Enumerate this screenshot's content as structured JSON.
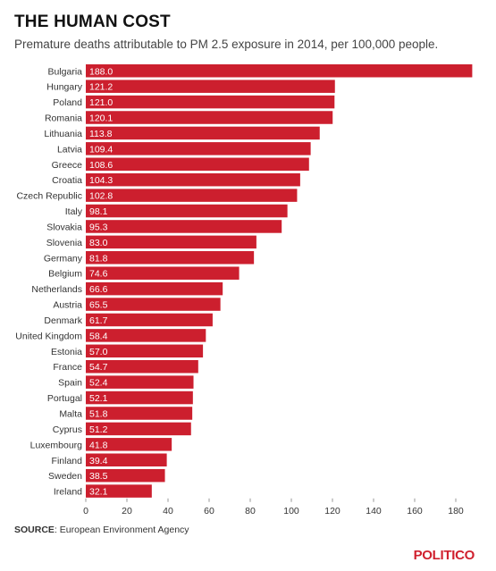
{
  "header": {
    "title": "THE HUMAN COST",
    "subtitle": "Premature deaths attributable to PM 2.5 exposure in 2014, per 100,000 people."
  },
  "footer": {
    "source_label": "SOURCE",
    "source_text": ": European Environment Agency",
    "brand": "POLITICO"
  },
  "colors": {
    "bar": "#cc1f2e",
    "label": "#ffffff",
    "text": "#333333"
  },
  "chart_data": {
    "type": "bar",
    "orientation": "horizontal",
    "categories": [
      "Bulgaria",
      "Hungary",
      "Poland",
      "Romania",
      "Lithuania",
      "Latvia",
      "Greece",
      "Croatia",
      "Czech Republic",
      "Italy",
      "Slovakia",
      "Slovenia",
      "Germany",
      "Belgium",
      "Netherlands",
      "Austria",
      "Denmark",
      "United Kingdom",
      "Estonia",
      "France",
      "Spain",
      "Portugal",
      "Malta",
      "Cyprus",
      "Luxembourg",
      "Finland",
      "Sweden",
      "Ireland"
    ],
    "values": [
      188.0,
      121.2,
      121.0,
      120.1,
      113.8,
      109.4,
      108.6,
      104.3,
      102.8,
      98.1,
      95.3,
      83.0,
      81.8,
      74.6,
      66.6,
      65.5,
      61.7,
      58.4,
      57.0,
      54.7,
      52.4,
      52.1,
      51.8,
      51.2,
      41.8,
      39.4,
      38.5,
      32.1
    ],
    "value_labels": [
      "188.0",
      "121.2",
      "121.0",
      "120.1",
      "113.8",
      "109.4",
      "108.6",
      "104.3",
      "102.8",
      "98.1",
      "95.3",
      "83.0",
      "81.8",
      "74.6",
      "66.6",
      "65.5",
      "61.7",
      "58.4",
      "57.0",
      "54.7",
      "52.4",
      "52.1",
      "51.8",
      "51.2",
      "41.8",
      "39.4",
      "38.5",
      "32.1"
    ],
    "xticks": [
      "0",
      "20",
      "40",
      "60",
      "80",
      "100",
      "120",
      "140",
      "160",
      "180"
    ],
    "xlim": [
      0,
      190
    ],
    "grid": false
  }
}
